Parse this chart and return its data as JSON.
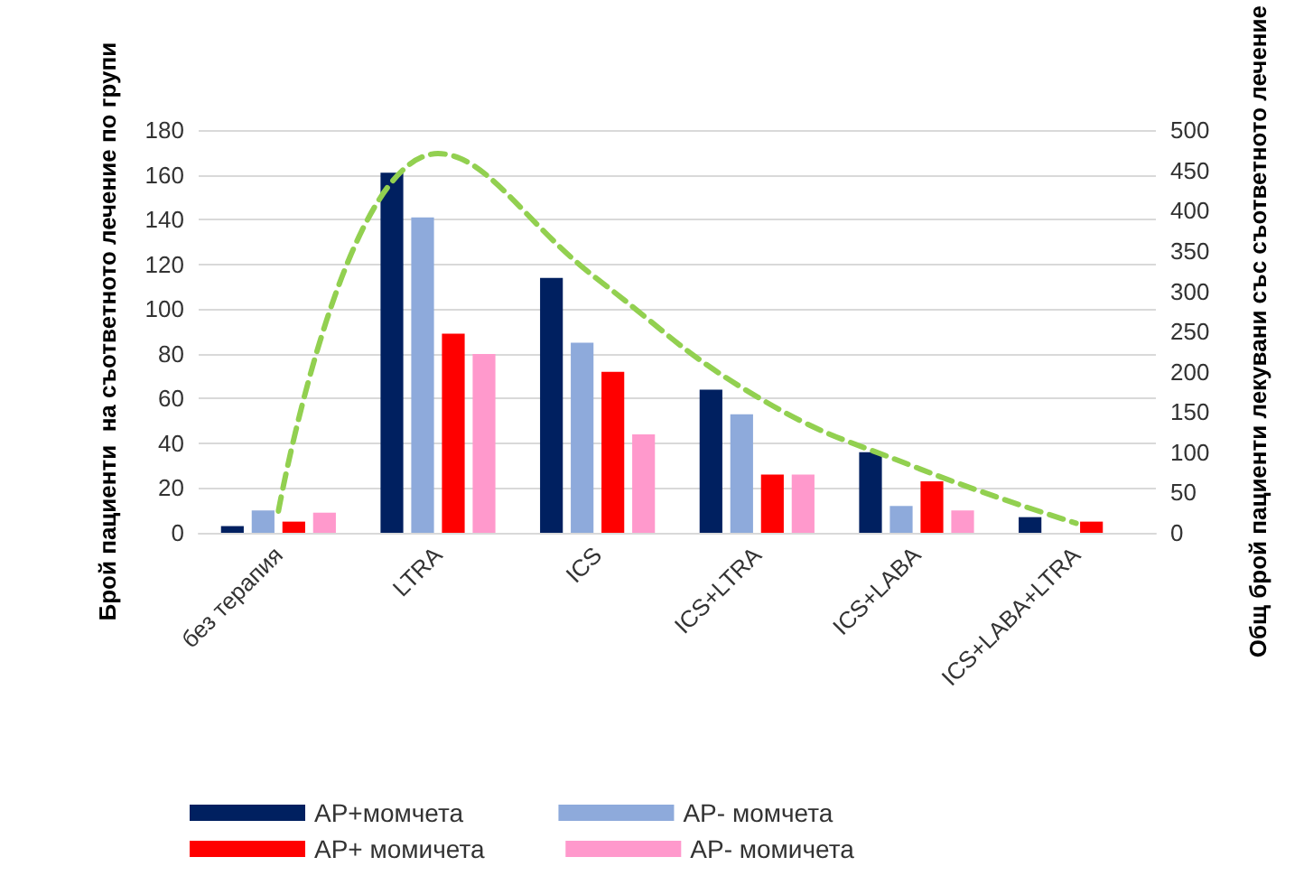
{
  "chart_data": {
    "type": "bar",
    "categories": [
      "без терапия",
      "LTRA",
      "ICS",
      "ICS+LTRA",
      "ICS+LABA",
      "ICS+LABA+LTRA"
    ],
    "ylabel": "Брой пациенти  на съответното лечение по групи",
    "y2label": "Общ брой пациенти лекувани със съответното лечение",
    "series": [
      {
        "name": "AP+момчета",
        "color": "#002060",
        "values": [
          3,
          161,
          114,
          64,
          36,
          7
        ]
      },
      {
        "name": "AP- момчета",
        "color": "#8eaadb",
        "values": [
          10,
          141,
          85,
          53,
          12,
          null
        ]
      },
      {
        "name": "AP+ момичета",
        "color": "#ff0000",
        "values": [
          5,
          89,
          72,
          26,
          23,
          5
        ]
      },
      {
        "name": "AP- момичета",
        "color": "#ff99cc",
        "values": [
          9,
          80,
          44,
          26,
          10,
          null
        ]
      },
      {
        "type": "line",
        "axis": "y2",
        "color": "#92d050",
        "line_style": "dashed",
        "marker": "none",
        "values": [
          27,
          471,
          315,
          169,
          81,
          12
        ]
      }
    ],
    "ylim": [
      0,
      180
    ],
    "yticks": [
      0,
      20,
      40,
      60,
      80,
      100,
      120,
      140,
      160,
      180
    ],
    "y2lim": [
      0,
      500
    ],
    "y2ticks": [
      0,
      50,
      100,
      150,
      200,
      250,
      300,
      350,
      400,
      450,
      500
    ],
    "grid": "y",
    "legend": "bottom"
  }
}
